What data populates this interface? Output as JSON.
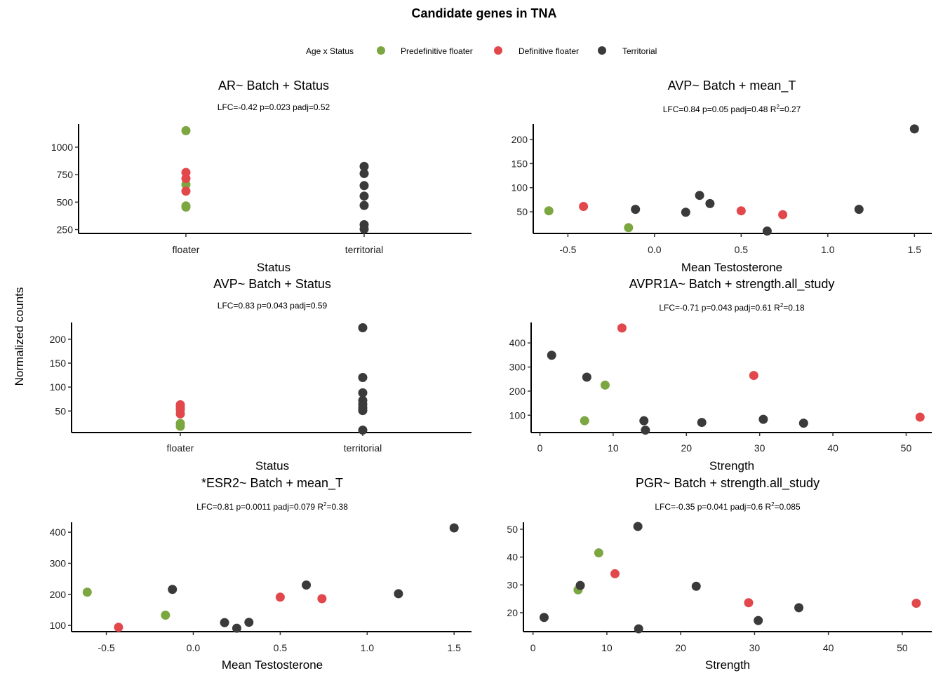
{
  "figure": {
    "title": "Candidate genes in TNA",
    "ylabel_shared": "Normalized counts"
  },
  "legend": {
    "title": "Age x Status",
    "items": [
      {
        "label": "Predefinitive floater",
        "color": "#7CA63F"
      },
      {
        "label": "Definitive floater",
        "color": "#E2474B"
      },
      {
        "label": "Territorial",
        "color": "#3A3A3A"
      }
    ]
  },
  "chart_data": [
    {
      "type": "scatter",
      "title": "AR~ Batch + Status",
      "subtitle": "LFC=-0.42 p=0.023 padj=0.52",
      "xlabel": "Status",
      "x_kind": "categorical",
      "categories": [
        "floater",
        "territorial"
      ],
      "yticks": [
        250,
        500,
        750,
        1000
      ],
      "ylim": [
        215,
        1210
      ],
      "points": [
        {
          "x": "floater",
          "y": 1150,
          "group": 0
        },
        {
          "x": "floater",
          "y": 660,
          "group": 0
        },
        {
          "x": "floater",
          "y": 465,
          "group": 0
        },
        {
          "x": "floater",
          "y": 455,
          "group": 0
        },
        {
          "x": "floater",
          "y": 770,
          "group": 1
        },
        {
          "x": "floater",
          "y": 715,
          "group": 1
        },
        {
          "x": "floater",
          "y": 600,
          "group": 1
        },
        {
          "x": "territorial",
          "y": 825,
          "group": 2
        },
        {
          "x": "territorial",
          "y": 760,
          "group": 2
        },
        {
          "x": "territorial",
          "y": 650,
          "group": 2
        },
        {
          "x": "territorial",
          "y": 555,
          "group": 2
        },
        {
          "x": "territorial",
          "y": 470,
          "group": 2
        },
        {
          "x": "territorial",
          "y": 295,
          "group": 2
        },
        {
          "x": "territorial",
          "y": 255,
          "group": 2
        }
      ]
    },
    {
      "type": "scatter",
      "title": "AVP~ Batch + mean_T",
      "subtitle": "LFC=0.84 p=0.05 padj=0.48 R",
      "subtitle_sup": "2",
      "subtitle_tail": "=0.27",
      "xlabel": "Mean Testosterone",
      "x_kind": "numeric",
      "xticks": [
        -0.5,
        0.0,
        0.5,
        1.0,
        1.5
      ],
      "xtick_labels": [
        "-0.5",
        "0.0",
        "0.5",
        "1.0",
        "1.5"
      ],
      "xlim": [
        -0.7,
        1.6
      ],
      "yticks": [
        50,
        100,
        150,
        200
      ],
      "ylim": [
        5,
        232
      ],
      "points": [
        {
          "x": -0.61,
          "y": 52,
          "group": 0
        },
        {
          "x": -0.15,
          "y": 17,
          "group": 0
        },
        {
          "x": -0.41,
          "y": 61,
          "group": 1
        },
        {
          "x": 0.5,
          "y": 52,
          "group": 1
        },
        {
          "x": 0.74,
          "y": 44,
          "group": 1
        },
        {
          "x": -0.11,
          "y": 55,
          "group": 2
        },
        {
          "x": 0.18,
          "y": 49,
          "group": 2
        },
        {
          "x": 0.26,
          "y": 84,
          "group": 2
        },
        {
          "x": 0.32,
          "y": 67,
          "group": 2
        },
        {
          "x": 0.65,
          "y": 10,
          "group": 2
        },
        {
          "x": 1.18,
          "y": 55,
          "group": 2
        },
        {
          "x": 1.5,
          "y": 222,
          "group": 2
        }
      ]
    },
    {
      "type": "scatter",
      "title": "AVP~ Batch + Status",
      "subtitle": "LFC=0.83 p=0.043 padj=0.59",
      "xlabel": "Status",
      "x_kind": "categorical",
      "categories": [
        "floater",
        "territorial"
      ],
      "yticks": [
        50,
        100,
        150,
        200
      ],
      "ylim": [
        5,
        235
      ],
      "points": [
        {
          "x": "floater",
          "y": 60,
          "group": 0
        },
        {
          "x": "floater",
          "y": 52,
          "group": 0
        },
        {
          "x": "floater",
          "y": 24,
          "group": 0
        },
        {
          "x": "floater",
          "y": 18,
          "group": 0
        },
        {
          "x": "floater",
          "y": 63,
          "group": 1
        },
        {
          "x": "floater",
          "y": 55,
          "group": 1
        },
        {
          "x": "floater",
          "y": 44,
          "group": 1
        },
        {
          "x": "territorial",
          "y": 224,
          "group": 2
        },
        {
          "x": "territorial",
          "y": 120,
          "group": 2
        },
        {
          "x": "territorial",
          "y": 88,
          "group": 2
        },
        {
          "x": "territorial",
          "y": 72,
          "group": 2
        },
        {
          "x": "territorial",
          "y": 64,
          "group": 2
        },
        {
          "x": "territorial",
          "y": 57,
          "group": 2
        },
        {
          "x": "territorial",
          "y": 51,
          "group": 2
        },
        {
          "x": "territorial",
          "y": 10,
          "group": 2
        }
      ]
    },
    {
      "type": "scatter",
      "title": "AVPR1A~ Batch + strength.all_study",
      "subtitle": "LFC=-0.71 p=0.043 padj=0.61 R",
      "subtitle_sup": "2",
      "subtitle_tail": "=0.18",
      "xlabel": "Strength",
      "x_kind": "numeric",
      "xticks": [
        0,
        10,
        20,
        30,
        40,
        50
      ],
      "xtick_labels": [
        "0",
        "10",
        "20",
        "30",
        "40",
        "50"
      ],
      "xlim": [
        -1.2,
        53.5
      ],
      "yticks": [
        100,
        200,
        300,
        400
      ],
      "ylim": [
        28,
        485
      ],
      "points": [
        {
          "x": 6.1,
          "y": 77,
          "group": 0
        },
        {
          "x": 8.9,
          "y": 225,
          "group": 0
        },
        {
          "x": 11.2,
          "y": 462,
          "group": 1
        },
        {
          "x": 29.2,
          "y": 265,
          "group": 1
        },
        {
          "x": 51.9,
          "y": 92,
          "group": 1
        },
        {
          "x": 1.6,
          "y": 349,
          "group": 2
        },
        {
          "x": 6.4,
          "y": 258,
          "group": 2
        },
        {
          "x": 14.2,
          "y": 77,
          "group": 2
        },
        {
          "x": 14.4,
          "y": 38,
          "group": 2
        },
        {
          "x": 22.1,
          "y": 70,
          "group": 2
        },
        {
          "x": 30.5,
          "y": 83,
          "group": 2
        },
        {
          "x": 36.0,
          "y": 67,
          "group": 2
        }
      ]
    },
    {
      "type": "scatter",
      "title": "*ESR2~ Batch + mean_T",
      "subtitle": "LFC=0.81 p=0.0011 padj=0.079 R",
      "subtitle_sup": "2",
      "subtitle_tail": "=0.38",
      "xlabel": "Mean Testosterone",
      "x_kind": "numeric",
      "xticks": [
        -0.5,
        0.0,
        0.5,
        1.0,
        1.5
      ],
      "xtick_labels": [
        "-0.5",
        "0.0",
        "0.5",
        "1.0",
        "1.5"
      ],
      "xlim": [
        -0.7,
        1.6
      ],
      "yticks": [
        100,
        200,
        300,
        400
      ],
      "ylim": [
        80,
        432
      ],
      "points": [
        {
          "x": -0.61,
          "y": 207,
          "group": 0
        },
        {
          "x": -0.16,
          "y": 133,
          "group": 0
        },
        {
          "x": -0.43,
          "y": 94,
          "group": 1
        },
        {
          "x": 0.5,
          "y": 191,
          "group": 1
        },
        {
          "x": 0.74,
          "y": 186,
          "group": 1
        },
        {
          "x": -0.12,
          "y": 216,
          "group": 2
        },
        {
          "x": 0.18,
          "y": 109,
          "group": 2
        },
        {
          "x": 0.25,
          "y": 91,
          "group": 2
        },
        {
          "x": 0.32,
          "y": 110,
          "group": 2
        },
        {
          "x": 0.65,
          "y": 230,
          "group": 2
        },
        {
          "x": 1.18,
          "y": 202,
          "group": 2
        },
        {
          "x": 1.5,
          "y": 414,
          "group": 2
        }
      ]
    },
    {
      "type": "scatter",
      "title": "PGR~ Batch + strength.all_study",
      "subtitle": "LFC=-0.35 p=0.041 padj=0.6 R",
      "subtitle_sup": "2",
      "subtitle_tail": "=0.085",
      "xlabel": "Strength",
      "x_kind": "numeric",
      "xticks": [
        0,
        10,
        20,
        30,
        40,
        50
      ],
      "xtick_labels": [
        "0",
        "10",
        "20",
        "30",
        "40",
        "50"
      ],
      "xlim": [
        -1.3,
        54.0
      ],
      "yticks": [
        20,
        30,
        40,
        50
      ],
      "ylim": [
        13.2,
        52.5
      ],
      "points": [
        {
          "x": 6.1,
          "y": 28.2,
          "group": 0
        },
        {
          "x": 8.9,
          "y": 41.5,
          "group": 0
        },
        {
          "x": 11.1,
          "y": 34.0,
          "group": 1
        },
        {
          "x": 29.2,
          "y": 23.6,
          "group": 1
        },
        {
          "x": 51.9,
          "y": 23.4,
          "group": 1
        },
        {
          "x": 1.5,
          "y": 18.3,
          "group": 2
        },
        {
          "x": 6.4,
          "y": 29.8,
          "group": 2
        },
        {
          "x": 14.2,
          "y": 51.0,
          "group": 2
        },
        {
          "x": 14.3,
          "y": 14.2,
          "group": 2
        },
        {
          "x": 22.1,
          "y": 29.5,
          "group": 2
        },
        {
          "x": 30.5,
          "y": 17.2,
          "group": 2
        },
        {
          "x": 36.0,
          "y": 21.8,
          "group": 2
        }
      ]
    }
  ]
}
